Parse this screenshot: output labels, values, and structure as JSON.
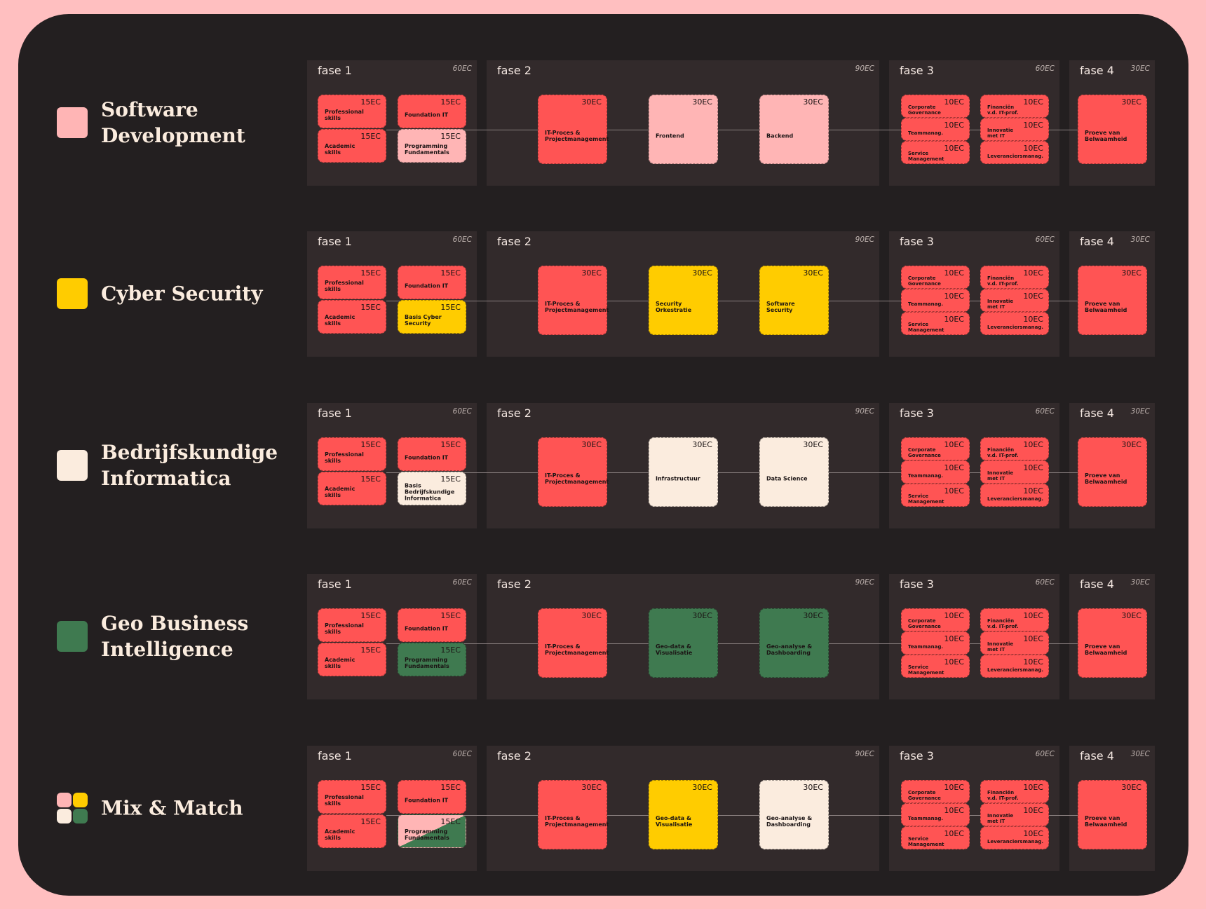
{
  "tracks": [
    {
      "title": "Software Development",
      "color": "#ffb5b5",
      "phases": [
        {
          "label": "fase 1",
          "ec": "60EC",
          "modules": [
            {
              "ec": "15EC",
              "name": "Professional skills",
              "color": "#ff5454"
            },
            {
              "ec": "15EC",
              "name": "Foundation IT",
              "color": "#ff5454"
            },
            {
              "ec": "15EC",
              "name": "Academic skills",
              "color": "#ff5454"
            },
            {
              "ec": "15EC",
              "name": "Programming Fundamentals",
              "color": "#ffb5b5"
            }
          ]
        },
        {
          "label": "fase 2",
          "ec": "90EC",
          "modules": [
            {
              "ec": "30EC",
              "name": "IT-Proces & Projectmanagement",
              "color": "#ff5454"
            },
            {
              "ec": "30EC",
              "name": "Frontend",
              "color": "#ffb5b5"
            },
            {
              "ec": "30EC",
              "name": "Backend",
              "color": "#ffb5b5"
            }
          ]
        },
        {
          "label": "fase 3",
          "ec": "60EC",
          "modules": [
            {
              "ec": "10EC",
              "name": "Corporate Governance",
              "color": "#ff5454"
            },
            {
              "ec": "10EC",
              "name": "Financiën v.d. IT-prof.",
              "color": "#ff5454"
            },
            {
              "ec": "10EC",
              "name": "Teammanag.",
              "color": "#ff5454"
            },
            {
              "ec": "10EC",
              "name": "Innovatie met IT",
              "color": "#ff5454"
            },
            {
              "ec": "10EC",
              "name": "Service Management",
              "color": "#ff5454"
            },
            {
              "ec": "10EC",
              "name": "Leveranciersmanag.",
              "color": "#ff5454"
            }
          ]
        },
        {
          "label": "fase 4",
          "ec": "30EC",
          "modules": [
            {
              "ec": "30EC",
              "name": "Proeve van Belwaamheid",
              "color": "#ff5454"
            }
          ]
        }
      ]
    },
    {
      "title": "Cyber Security",
      "color": "#ffcc00",
      "phases": [
        {
          "label": "fase 1",
          "ec": "60EC",
          "modules": [
            {
              "ec": "15EC",
              "name": "Professional skills",
              "color": "#ff5454"
            },
            {
              "ec": "15EC",
              "name": "Foundation IT",
              "color": "#ff5454"
            },
            {
              "ec": "15EC",
              "name": "Academic skills",
              "color": "#ff5454"
            },
            {
              "ec": "15EC",
              "name": "Basis Cyber Security",
              "color": "#ffcc00"
            }
          ]
        },
        {
          "label": "fase 2",
          "ec": "90EC",
          "modules": [
            {
              "ec": "30EC",
              "name": "IT-Proces & Projectmanagement",
              "color": "#ff5454"
            },
            {
              "ec": "30EC",
              "name": "Security Orkestratie",
              "color": "#ffcc00"
            },
            {
              "ec": "30EC",
              "name": "Software Security",
              "color": "#ffcc00"
            }
          ]
        },
        {
          "label": "fase 3",
          "ec": "60EC",
          "modules": [
            {
              "ec": "10EC",
              "name": "Corporate Governance",
              "color": "#ff5454"
            },
            {
              "ec": "10EC",
              "name": "Financiën v.d. IT-prof.",
              "color": "#ff5454"
            },
            {
              "ec": "10EC",
              "name": "Teammanag.",
              "color": "#ff5454"
            },
            {
              "ec": "10EC",
              "name": "Innovatie met IT",
              "color": "#ff5454"
            },
            {
              "ec": "10EC",
              "name": "Service Management",
              "color": "#ff5454"
            },
            {
              "ec": "10EC",
              "name": "Leveranciersmanag.",
              "color": "#ff5454"
            }
          ]
        },
        {
          "label": "fase 4",
          "ec": "30EC",
          "modules": [
            {
              "ec": "30EC",
              "name": "Proeve van Belwaamheid",
              "color": "#ff5454"
            }
          ]
        }
      ]
    },
    {
      "title": "Bedrijfskundige Informatica",
      "color": "#fbecde",
      "phases": [
        {
          "label": "fase 1",
          "ec": "60EC",
          "modules": [
            {
              "ec": "15EC",
              "name": "Professional skills",
              "color": "#ff5454"
            },
            {
              "ec": "15EC",
              "name": "Foundation IT",
              "color": "#ff5454"
            },
            {
              "ec": "15EC",
              "name": "Academic skills",
              "color": "#ff5454"
            },
            {
              "ec": "15EC",
              "name": "Basis Bedrijfskundige Informatica",
              "color": "#fbecde"
            }
          ]
        },
        {
          "label": "fase 2",
          "ec": "90EC",
          "modules": [
            {
              "ec": "30EC",
              "name": "IT-Proces & Projectmanagement",
              "color": "#ff5454"
            },
            {
              "ec": "30EC",
              "name": "Infrastructuur",
              "color": "#fbecde"
            },
            {
              "ec": "30EC",
              "name": "Data Science",
              "color": "#fbecde"
            }
          ]
        },
        {
          "label": "fase 3",
          "ec": "60EC",
          "modules": [
            {
              "ec": "10EC",
              "name": "Corporate Governance",
              "color": "#ff5454"
            },
            {
              "ec": "10EC",
              "name": "Financiën v.d. IT-prof.",
              "color": "#ff5454"
            },
            {
              "ec": "10EC",
              "name": "Teammanag.",
              "color": "#ff5454"
            },
            {
              "ec": "10EC",
              "name": "Innovatie met IT",
              "color": "#ff5454"
            },
            {
              "ec": "10EC",
              "name": "Service Management",
              "color": "#ff5454"
            },
            {
              "ec": "10EC",
              "name": "Leveranciersmanag.",
              "color": "#ff5454"
            }
          ]
        },
        {
          "label": "fase 4",
          "ec": "30EC",
          "modules": [
            {
              "ec": "30EC",
              "name": "Proeve van Belwaamheid",
              "color": "#ff5454"
            }
          ]
        }
      ]
    },
    {
      "title": "Geo Business Intelligence",
      "color": "#3f7a50",
      "phases": [
        {
          "label": "fase 1",
          "ec": "60EC",
          "modules": [
            {
              "ec": "15EC",
              "name": "Professional skills",
              "color": "#ff5454"
            },
            {
              "ec": "15EC",
              "name": "Foundation IT",
              "color": "#ff5454"
            },
            {
              "ec": "15EC",
              "name": "Academic skills",
              "color": "#ff5454"
            },
            {
              "ec": "15EC",
              "name": "Programming Fundamentals",
              "color": "#3f7a50"
            }
          ]
        },
        {
          "label": "fase 2",
          "ec": "90EC",
          "modules": [
            {
              "ec": "30EC",
              "name": "IT-Proces & Projectmanagement",
              "color": "#ff5454"
            },
            {
              "ec": "30EC",
              "name": "Geo-data & Visualisatie",
              "color": "#3f7a50"
            },
            {
              "ec": "30EC",
              "name": "Geo-analyse & Dashboarding",
              "color": "#3f7a50"
            }
          ]
        },
        {
          "label": "fase 3",
          "ec": "60EC",
          "modules": [
            {
              "ec": "10EC",
              "name": "Corporate Governance",
              "color": "#ff5454"
            },
            {
              "ec": "10EC",
              "name": "Financiën v.d. IT-prof.",
              "color": "#ff5454"
            },
            {
              "ec": "10EC",
              "name": "Teammanag.",
              "color": "#ff5454"
            },
            {
              "ec": "10EC",
              "name": "Innovatie met IT",
              "color": "#ff5454"
            },
            {
              "ec": "10EC",
              "name": "Service Management",
              "color": "#ff5454"
            },
            {
              "ec": "10EC",
              "name": "Leveranciersmanag.",
              "color": "#ff5454"
            }
          ]
        },
        {
          "label": "fase 4",
          "ec": "30EC",
          "modules": [
            {
              "ec": "30EC",
              "name": "Proeve van Belwaamheid",
              "color": "#ff5454"
            }
          ]
        }
      ]
    },
    {
      "title": "Mix & Match",
      "icon_colors": [
        "#ffb5b5",
        "#ffcc00",
        "#fbecde",
        "#3f7a50"
      ],
      "phases": [
        {
          "label": "fase 1",
          "ec": "60EC",
          "modules": [
            {
              "ec": "15EC",
              "name": "Professional skills",
              "color": "#ff5454"
            },
            {
              "ec": "15EC",
              "name": "Foundation IT",
              "color": "#ff5454"
            },
            {
              "ec": "15EC",
              "name": "Academic skills",
              "color": "#ff5454"
            },
            {
              "ec": "15EC",
              "name": "Programming Fundamentals",
              "colors": [
                "#ffb5b5",
                "#3f7a50"
              ]
            }
          ]
        },
        {
          "label": "fase 2",
          "ec": "90EC",
          "modules": [
            {
              "ec": "30EC",
              "name": "IT-Proces & Projectmanagement",
              "color": "#ff5454"
            },
            {
              "ec": "30EC",
              "name": "Geo-data & Visualisatie",
              "color": "#ffcc00"
            },
            {
              "ec": "30EC",
              "name": "Geo-analyse & Dashboarding",
              "color": "#fbecde"
            }
          ]
        },
        {
          "label": "fase 3",
          "ec": "60EC",
          "modules": [
            {
              "ec": "10EC",
              "name": "Corporate Governance",
              "color": "#ff5454"
            },
            {
              "ec": "10EC",
              "name": "Financiën v.d. IT-prof.",
              "color": "#ff5454"
            },
            {
              "ec": "10EC",
              "name": "Teammanag.",
              "color": "#ff5454"
            },
            {
              "ec": "10EC",
              "name": "Innovatie met IT",
              "color": "#ff5454"
            },
            {
              "ec": "10EC",
              "name": "Service Management",
              "color": "#ff5454"
            },
            {
              "ec": "10EC",
              "name": "Leveranciersmanag.",
              "color": "#ff5454"
            }
          ]
        },
        {
          "label": "fase 4",
          "ec": "30EC",
          "modules": [
            {
              "ec": "30EC",
              "name": "Proeve van Belwaamheid",
              "color": "#ff5454"
            }
          ]
        }
      ]
    }
  ]
}
